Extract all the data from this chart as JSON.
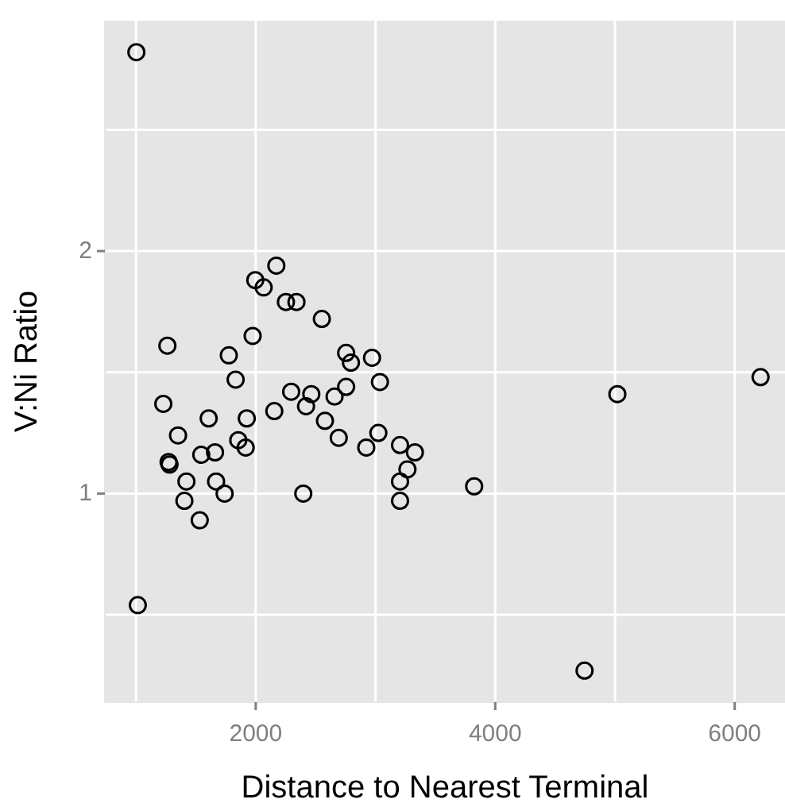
{
  "chart_data": {
    "type": "scatter",
    "xlabel": "Distance to Nearest Terminal",
    "ylabel": "V:Ni Ratio",
    "xlim": [
      740,
      6420
    ],
    "ylim": [
      0.14,
      2.95
    ],
    "xticks": [
      {
        "value": 1000,
        "label": null
      },
      2000,
      {
        "value": 3000,
        "label": null
      },
      4000,
      {
        "value": 5000,
        "label": null
      },
      6000
    ],
    "yticks": [
      {
        "value": 0.5,
        "label": null
      },
      1,
      {
        "value": 1.5,
        "label": null
      },
      2,
      {
        "value": 2.5,
        "label": null
      }
    ],
    "grid": true,
    "marker": "circle",
    "series": [
      {
        "color": "#000000",
        "x": [
          1003,
          1015,
          4746,
          5020,
          6216,
          2172,
          1996,
          2066,
          2252,
          2340,
          2552,
          1974,
          1262,
          1775,
          2755,
          2795,
          2971,
          1832,
          3037,
          1228,
          2296,
          2464,
          2658,
          2755,
          2420,
          2155,
          1607,
          1925,
          2578,
          1351,
          2693,
          3024,
          1854,
          1916,
          2923,
          3205,
          3329,
          1545,
          1660,
          1272,
          1280,
          1421,
          1669,
          3267,
          3205,
          1740,
          2397,
          3824,
          1404,
          3205,
          1532
        ],
        "values": [
          2.82,
          0.54,
          0.27,
          1.41,
          1.48,
          1.94,
          1.88,
          1.85,
          1.79,
          1.79,
          1.72,
          1.65,
          1.61,
          1.57,
          1.58,
          1.54,
          1.56,
          1.47,
          1.46,
          1.37,
          1.42,
          1.41,
          1.4,
          1.44,
          1.36,
          1.34,
          1.31,
          1.31,
          1.3,
          1.24,
          1.23,
          1.25,
          1.22,
          1.19,
          1.19,
          1.2,
          1.17,
          1.16,
          1.17,
          1.13,
          1.12,
          1.05,
          1.05,
          1.1,
          1.05,
          1.0,
          1.0,
          1.03,
          0.97,
          0.97,
          0.89
        ]
      }
    ]
  }
}
